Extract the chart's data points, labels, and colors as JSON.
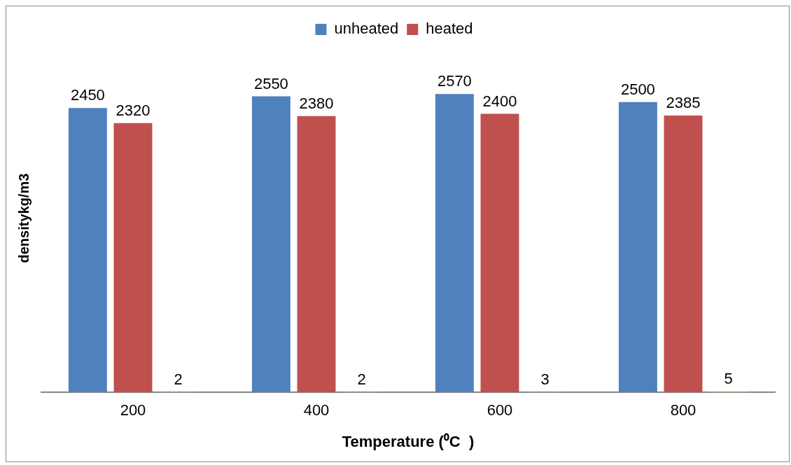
{
  "chart_data": {
    "type": "bar",
    "xlabel": "Temperature (⁰C  )",
    "ylabel": "densitykg/m3",
    "categories": [
      "200",
      "400",
      "600",
      "800"
    ],
    "series": [
      {
        "name": "unheated",
        "color": "#4f81bd",
        "values": [
          2450,
          2550,
          2570,
          2500
        ]
      },
      {
        "name": "heated",
        "color": "#c0504d",
        "values": [
          2320,
          2380,
          2400,
          2385
        ]
      },
      {
        "color": "#9bbb59",
        "values": [
          2,
          2,
          3,
          5
        ]
      }
    ],
    "data_labels": true,
    "legend": "top",
    "grid": false,
    "tick_labels": "x"
  }
}
